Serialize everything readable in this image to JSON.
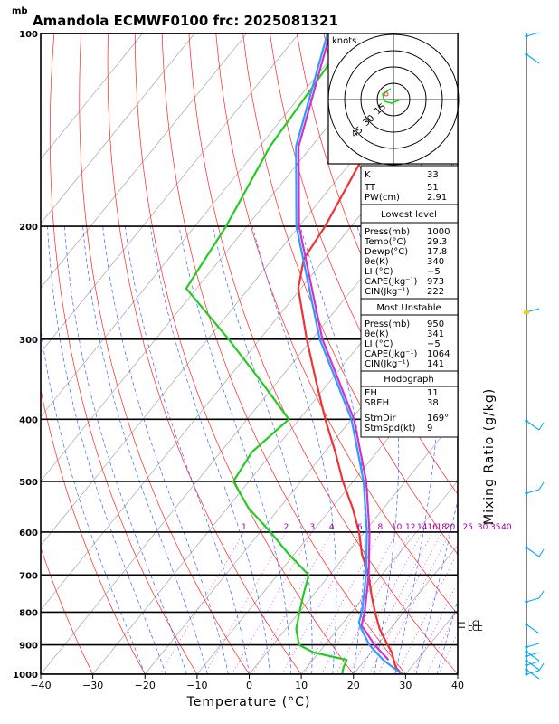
{
  "title": "Amandola ECMWF0100  frc: 2025081321",
  "pressure_unit": "mb",
  "x_axis_label": "Temperature (°C)",
  "right_axis_label": "Mixing Ratio (g/kg)",
  "hodograph": {
    "unit_label": "knots",
    "ring_labels": [
      "15",
      "30",
      "45"
    ]
  },
  "mixing_ratio_labels": [
    "1",
    "2",
    "3",
    "4",
    "6",
    "8",
    "10",
    "12",
    "14",
    "16",
    "18",
    "20",
    "25",
    "30",
    "35",
    "40"
  ],
  "lcl_labels": [
    "LCL",
    "LCL"
  ],
  "colors": {
    "temperature": "#ee3333",
    "dewpoint": "#22cc22",
    "parcel_most_unstable": "#cc33cc",
    "parcel_surface": "#3399ff",
    "dry_adiabat": "#ff2222",
    "moist_adiabat": "#3366ff",
    "mixing_ratio": "#cc00cc",
    "isotherm": "#999999",
    "wind": "#00aaff"
  },
  "indices": {
    "top": [
      {
        "label": "K",
        "value": "33"
      },
      {
        "label": "TT",
        "value": "51"
      },
      {
        "label": "PW(cm)",
        "value": "2.91"
      }
    ],
    "lowest_title": "Lowest level",
    "lowest": [
      {
        "label": "Press(mb)",
        "value": "1000"
      },
      {
        "label": "Temp(°C)",
        "value": "29.3"
      },
      {
        "label": "Dewp(°C)",
        "value": "17.8"
      },
      {
        "label": "θe(K)",
        "value": "340"
      },
      {
        "label": "LI (°C)",
        "value": "−5"
      },
      {
        "label": "CAPE(Jkg⁻¹)",
        "value": "973"
      },
      {
        "label": "CIN(Jkg⁻¹)",
        "value": "222"
      }
    ],
    "mu_title": "Most Unstable",
    "mu": [
      {
        "label": "Press(mb)",
        "value": "950"
      },
      {
        "label": "θe(K)",
        "value": "341"
      },
      {
        "label": "LI (°C)",
        "value": "−5"
      },
      {
        "label": "CAPE(Jkg⁻¹)",
        "value": "1064"
      },
      {
        "label": "CIN(Jkg⁻¹)",
        "value": "141"
      }
    ],
    "hodo_title": "Hodograph",
    "hodo": [
      {
        "label": "EH",
        "value": "11"
      },
      {
        "label": "SREH",
        "value": "38"
      },
      {
        "label": "StmDir",
        "value": "169°"
      },
      {
        "label": "StmSpd(kt)",
        "value": "9"
      }
    ]
  },
  "chart_data": {
    "type": "line",
    "chart_kind": "skew-T log-P",
    "x": {
      "label": "Temperature (°C)",
      "range": [
        -40,
        40
      ],
      "ticks": [
        "−40",
        "−30",
        "−20",
        "−10",
        "0",
        "10",
        "20",
        "30",
        "40"
      ]
    },
    "y": {
      "label": "mb",
      "scale": "log",
      "range": [
        1000,
        100
      ],
      "ticks": [
        "100",
        "200",
        "300",
        "400",
        "500",
        "600",
        "700",
        "800",
        "900",
        "1000"
      ]
    },
    "series": [
      {
        "name": "",
        "role": "temperature",
        "pressure": [
          1000,
          975,
          950,
          925,
          900,
          850,
          800,
          750,
          700,
          650,
          600,
          550,
          500,
          450,
          400,
          350,
          300,
          250,
          225,
          200,
          150,
          100
        ],
        "temp_c": [
          29.3,
          27.0,
          25.5,
          24.0,
          22.0,
          18.0,
          14.5,
          11.0,
          7.5,
          3.0,
          -1.0,
          -6.0,
          -12.0,
          -18.0,
          -25.0,
          -32.5,
          -41.0,
          -50.5,
          -54.0,
          -55.0,
          -59.0,
          -63.0
        ]
      },
      {
        "name": "",
        "role": "dewpoint",
        "pressure": [
          1000,
          975,
          950,
          925,
          900,
          850,
          800,
          750,
          700,
          650,
          600,
          550,
          500,
          450,
          400,
          350,
          300,
          250,
          200,
          150,
          100
        ],
        "temp_c": [
          17.8,
          17.0,
          16.5,
          9.0,
          5.0,
          2.0,
          0.0,
          -2.0,
          -4.0,
          -11.0,
          -18.0,
          -26.0,
          -33.0,
          -34.0,
          -32.0,
          -43.0,
          -56.0,
          -72.0,
          -74.0,
          -78.0,
          -80.0
        ]
      },
      {
        "name": "",
        "role": "parcel_most_unstable",
        "pressure": [
          950,
          900,
          850,
          840,
          800,
          700,
          600,
          500,
          400,
          300,
          200,
          150,
          100
        ],
        "temp_c": [
          24.5,
          19.5,
          15.0,
          14.0,
          12.5,
          7.5,
          1.0,
          -7.5,
          -19.5,
          -38.0,
          -60.0,
          -72.5,
          -84.0
        ]
      },
      {
        "name": "",
        "role": "parcel_surface",
        "pressure": [
          1000,
          950,
          900,
          850,
          830,
          800,
          700,
          600,
          500,
          400,
          300,
          200,
          150,
          100
        ],
        "temp_c": [
          29.3,
          23.5,
          18.5,
          14.5,
          13.0,
          12.0,
          7.0,
          0.5,
          -8.0,
          -20.0,
          -38.5,
          -60.5,
          -73.0,
          -84.5
        ]
      }
    ],
    "wind_profile": {
      "speed_kt": [
        5,
        5,
        5,
        10,
        10,
        10,
        10,
        5,
        5,
        5,
        5,
        5,
        5,
        5,
        10
      ]
    },
    "mixing_ratio_gkg": [
      1,
      2,
      3,
      4,
      6,
      8,
      10,
      12,
      14,
      16,
      18,
      20,
      25,
      30,
      35,
      40
    ],
    "lcl_pressure_mb": [
      831,
      845
    ]
  }
}
